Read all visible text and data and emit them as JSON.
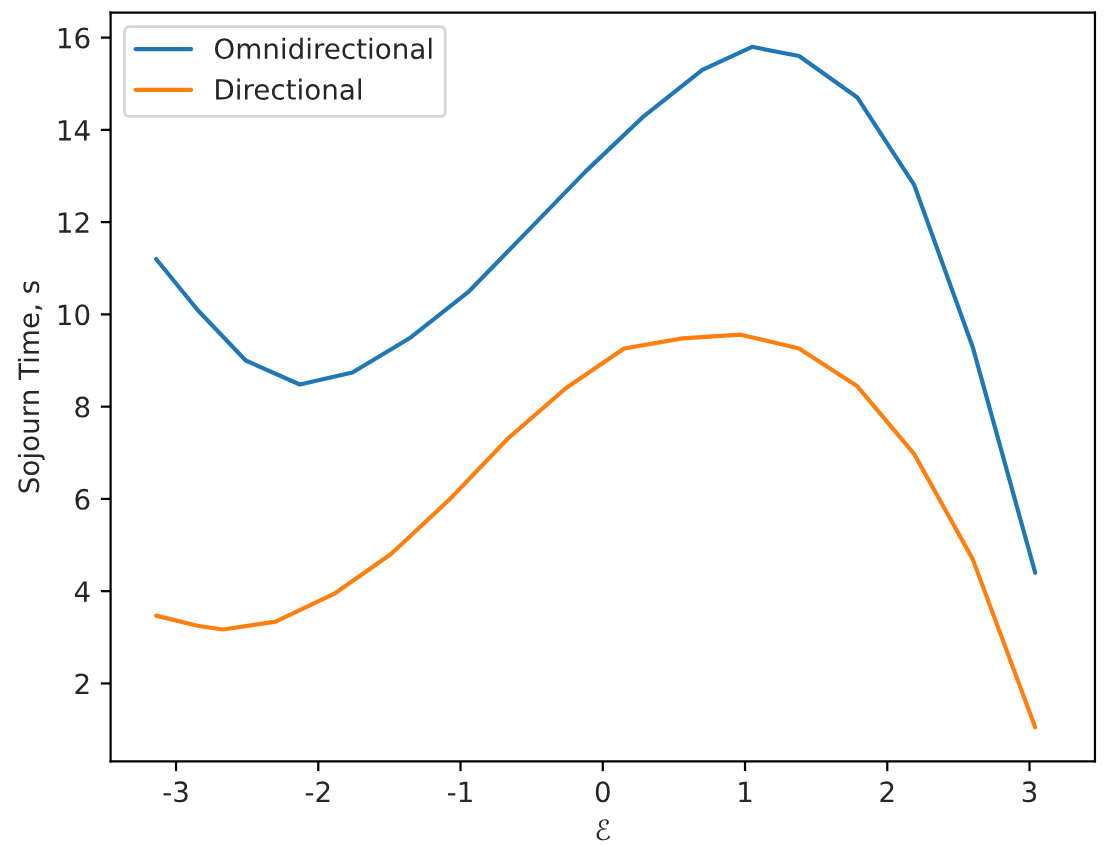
{
  "chart_data": {
    "type": "line",
    "xlabel": "ℰ",
    "ylabel": "Sojourn Time, s",
    "xlim": [
      -3.46,
      3.46
    ],
    "ylim": [
      0.31,
      16.54
    ],
    "xticks": [
      -3,
      -2,
      -1,
      0,
      1,
      2,
      3
    ],
    "yticks": [
      2,
      4,
      6,
      8,
      10,
      12,
      14,
      16
    ],
    "legend": "top left",
    "grid": false,
    "series": [
      {
        "name": "Omnidirectional",
        "color": "#1f77b4",
        "x": [
          -3.14,
          -2.85,
          -2.51,
          -2.13,
          -1.76,
          -1.35,
          -0.94,
          -0.53,
          -0.12,
          0.29,
          0.7,
          1.05,
          1.38,
          1.79,
          2.19,
          2.6,
          3.04
        ],
        "values": [
          11.2,
          10.1,
          9.0,
          8.48,
          8.74,
          9.5,
          10.5,
          11.8,
          13.1,
          14.3,
          15.3,
          15.8,
          15.6,
          14.7,
          12.8,
          9.3,
          4.4
        ]
      },
      {
        "name": "Directional",
        "color": "#ff7f0e",
        "x": [
          -3.14,
          -2.85,
          -2.67,
          -2.3,
          -1.89,
          -1.49,
          -1.08,
          -0.67,
          -0.26,
          0.15,
          0.56,
          0.97,
          1.38,
          1.79,
          2.19,
          2.6,
          3.04
        ],
        "values": [
          3.47,
          3.25,
          3.17,
          3.34,
          3.94,
          4.8,
          5.98,
          7.3,
          8.4,
          9.26,
          9.48,
          9.56,
          9.26,
          8.44,
          6.97,
          4.7,
          1.05
        ]
      }
    ]
  }
}
